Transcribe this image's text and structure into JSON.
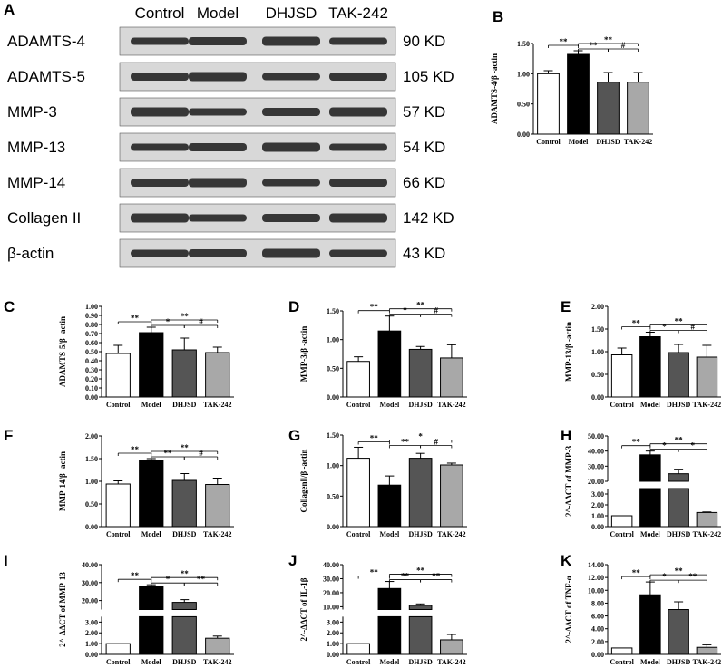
{
  "western_blot": {
    "panel_label": "A",
    "lanes": [
      "Control",
      "Model",
      "DHJSD",
      "TAK-242"
    ],
    "rows": [
      {
        "protein": "ADAMTS-4",
        "size": "90 KD"
      },
      {
        "protein": "ADAMTS-5",
        "size": "105 KD"
      },
      {
        "protein": "MMP-3",
        "size": "57 KD"
      },
      {
        "protein": "MMP-13",
        "size": "54 KD"
      },
      {
        "protein": "MMP-14",
        "size": "66 KD"
      },
      {
        "protein": "Collagen II",
        "size": "142 KD"
      },
      {
        "protein": "β-actin",
        "size": "43 KD"
      }
    ]
  },
  "colors": {
    "control": "#ffffff",
    "model": "#000000",
    "dhjsd": "#555555",
    "tak242": "#a8a8a8",
    "band": "#1a1a1a",
    "blot_bg": "#d8d8d8"
  },
  "chart_data": [
    {
      "panel": "B",
      "type": "bar",
      "categories": [
        "Control",
        "Model",
        "DHJSD",
        "TAK-242"
      ],
      "values": [
        1.0,
        1.32,
        0.86,
        0.86
      ],
      "errors": [
        0.05,
        0.06,
        0.16,
        0.16
      ],
      "ylabel": "ADAMTS-4/β -actin",
      "ylim": [
        0,
        1.5
      ],
      "yticks": [
        "0.00",
        "0.50",
        "1.00",
        "1.50"
      ],
      "significance": [
        {
          "pair": [
            0,
            1
          ],
          "text": "**"
        },
        {
          "pair": [
            1,
            2
          ],
          "text": "**"
        },
        {
          "pair": [
            1,
            3
          ],
          "text": "**"
        },
        {
          "pair": [
            2,
            3
          ],
          "text": "#"
        }
      ]
    },
    {
      "panel": "C",
      "type": "bar",
      "categories": [
        "Control",
        "Model",
        "DHJSD",
        "TAK-242"
      ],
      "values": [
        0.48,
        0.71,
        0.52,
        0.49
      ],
      "errors": [
        0.09,
        0.06,
        0.13,
        0.06
      ],
      "ylabel": "ADAMTS-5/β -actin",
      "ylim": [
        0,
        1.0
      ],
      "yticks": [
        "0.00",
        "0.10",
        "0.20",
        "0.30",
        "0.40",
        "0.50",
        "0.60",
        "0.70",
        "0.80",
        "0.90",
        "1.00"
      ],
      "significance": [
        {
          "pair": [
            0,
            1
          ],
          "text": "**"
        },
        {
          "pair": [
            1,
            2
          ],
          "text": "*"
        },
        {
          "pair": [
            1,
            3
          ],
          "text": "**"
        },
        {
          "pair": [
            2,
            3
          ],
          "text": "#"
        }
      ]
    },
    {
      "panel": "D",
      "type": "bar",
      "categories": [
        "Control",
        "Model",
        "DHJSD",
        "TAK-242"
      ],
      "values": [
        0.62,
        1.15,
        0.83,
        0.68
      ],
      "errors": [
        0.08,
        0.26,
        0.05,
        0.23
      ],
      "ylabel": "MMP-3/β -actin",
      "ylim": [
        0,
        1.5
      ],
      "yticks": [
        "0.00",
        "0.50",
        "1.00",
        "1.50"
      ],
      "significance": [
        {
          "pair": [
            0,
            1
          ],
          "text": "**"
        },
        {
          "pair": [
            1,
            2
          ],
          "text": "*"
        },
        {
          "pair": [
            1,
            3
          ],
          "text": "**"
        },
        {
          "pair": [
            2,
            3
          ],
          "text": "#"
        }
      ]
    },
    {
      "panel": "E",
      "type": "bar",
      "categories": [
        "Control",
        "Model",
        "DHJSD",
        "TAK-242"
      ],
      "values": [
        0.93,
        1.33,
        0.98,
        0.88
      ],
      "errors": [
        0.15,
        0.1,
        0.18,
        0.26
      ],
      "ylabel": "MMP-13/β -actin",
      "ylim": [
        0,
        2.0
      ],
      "yticks": [
        "0.00",
        "0.50",
        "1.00",
        "1.50",
        "2.00"
      ],
      "significance": [
        {
          "pair": [
            0,
            1
          ],
          "text": "**"
        },
        {
          "pair": [
            1,
            2
          ],
          "text": "*"
        },
        {
          "pair": [
            1,
            3
          ],
          "text": "**"
        },
        {
          "pair": [
            2,
            3
          ],
          "text": "#"
        }
      ]
    },
    {
      "panel": "F",
      "type": "bar",
      "categories": [
        "Control",
        "Model",
        "DHJSD",
        "TAK-242"
      ],
      "values": [
        0.94,
        1.46,
        1.02,
        0.93
      ],
      "errors": [
        0.07,
        0.04,
        0.15,
        0.14
      ],
      "ylabel": "MMP-14/β -actin",
      "ylim": [
        0,
        2.0
      ],
      "yticks": [
        "0.00",
        "0.50",
        "1.00",
        "1.50",
        "2.00"
      ],
      "significance": [
        {
          "pair": [
            0,
            1
          ],
          "text": "**"
        },
        {
          "pair": [
            1,
            2
          ],
          "text": "**"
        },
        {
          "pair": [
            1,
            3
          ],
          "text": "**"
        },
        {
          "pair": [
            2,
            3
          ],
          "text": "#"
        }
      ]
    },
    {
      "panel": "G",
      "type": "bar",
      "categories": [
        "Control",
        "Model",
        "DHJSD",
        "TAK-242"
      ],
      "values": [
        1.12,
        0.68,
        1.12,
        1.01
      ],
      "errors": [
        0.18,
        0.15,
        0.08,
        0.03
      ],
      "ylabel": "CollagenⅡ/β -actin",
      "ylim": [
        0,
        1.5
      ],
      "yticks": [
        "0.00",
        "0.50",
        "1.00",
        "1.50"
      ],
      "significance": [
        {
          "pair": [
            0,
            1
          ],
          "text": "**"
        },
        {
          "pair": [
            1,
            2
          ],
          "text": "**"
        },
        {
          "pair": [
            1,
            3
          ],
          "text": "*"
        },
        {
          "pair": [
            2,
            3
          ],
          "text": "#"
        }
      ]
    },
    {
      "panel": "H",
      "type": "bar",
      "categories": [
        "Control",
        "Model",
        "DHJSD",
        "TAK-242"
      ],
      "values": [
        1.0,
        37.5,
        25.0,
        1.3
      ],
      "errors": [
        0.0,
        2.5,
        3.0,
        0.05
      ],
      "ylabel": "2^-ΔΔCT of MMP-3",
      "axis_break": [
        3.5,
        20
      ],
      "yticks_lower": [
        "0.00",
        "1.00",
        "2.00",
        "3.00"
      ],
      "yticks_upper": [
        "20.00",
        "30.00",
        "40.00",
        "50.00"
      ],
      "significance": [
        {
          "pair": [
            0,
            1
          ],
          "text": "**"
        },
        {
          "pair": [
            1,
            2
          ],
          "text": "*"
        },
        {
          "pair": [
            1,
            3
          ],
          "text": "**"
        },
        {
          "pair": [
            2,
            3
          ],
          "text": "*"
        }
      ]
    },
    {
      "panel": "I",
      "type": "bar",
      "categories": [
        "Control",
        "Model",
        "DHJSD",
        "TAK-242"
      ],
      "values": [
        1.0,
        28.0,
        19.0,
        1.5
      ],
      "errors": [
        0.0,
        0.8,
        1.5,
        0.2
      ],
      "ylabel": "2^-ΔΔCT of MMP-13",
      "axis_break": [
        3.5,
        15
      ],
      "yticks_lower": [
        "0.00",
        "1.00",
        "2.00",
        "3.00"
      ],
      "yticks_upper": [
        "20.00",
        "30.00",
        "40.00"
      ],
      "significance": [
        {
          "pair": [
            0,
            1
          ],
          "text": "**"
        },
        {
          "pair": [
            1,
            2
          ],
          "text": "*"
        },
        {
          "pair": [
            1,
            3
          ],
          "text": "**"
        },
        {
          "pair": [
            2,
            3
          ],
          "text": "**"
        }
      ]
    },
    {
      "panel": "J",
      "type": "bar",
      "categories": [
        "Control",
        "Model",
        "DHJSD",
        "TAK-242"
      ],
      "values": [
        1.0,
        23.0,
        11.0,
        1.35
      ],
      "errors": [
        0.0,
        5.0,
        1.0,
        0.5
      ],
      "ylabel": "2^-ΔΔCT of IL-1β",
      "axis_break": [
        3.5,
        8
      ],
      "yticks_lower": [
        "0.00",
        "1.00",
        "2.00",
        "3.00"
      ],
      "yticks_upper": [
        "10.00",
        "20.00",
        "30.00",
        "40.00"
      ],
      "significance": [
        {
          "pair": [
            0,
            1
          ],
          "text": "**"
        },
        {
          "pair": [
            1,
            2
          ],
          "text": "**"
        },
        {
          "pair": [
            1,
            3
          ],
          "text": "**"
        },
        {
          "pair": [
            2,
            3
          ],
          "text": "**"
        }
      ]
    },
    {
      "panel": "K",
      "type": "bar",
      "categories": [
        "Control",
        "Model",
        "DHJSD",
        "TAK-242"
      ],
      "values": [
        1.0,
        9.3,
        7.0,
        1.1
      ],
      "errors": [
        0.0,
        2.0,
        1.2,
        0.4
      ],
      "ylabel": "2^-ΔΔCT of TNF-α",
      "ylim": [
        0,
        14
      ],
      "yticks": [
        "0.00",
        "2.00",
        "4.00",
        "6.00",
        "8.00",
        "10.00",
        "12.00",
        "14.00"
      ],
      "significance": [
        {
          "pair": [
            0,
            1
          ],
          "text": "**"
        },
        {
          "pair": [
            1,
            2
          ],
          "text": "*"
        },
        {
          "pair": [
            1,
            3
          ],
          "text": "**"
        },
        {
          "pair": [
            2,
            3
          ],
          "text": "**"
        }
      ]
    }
  ]
}
